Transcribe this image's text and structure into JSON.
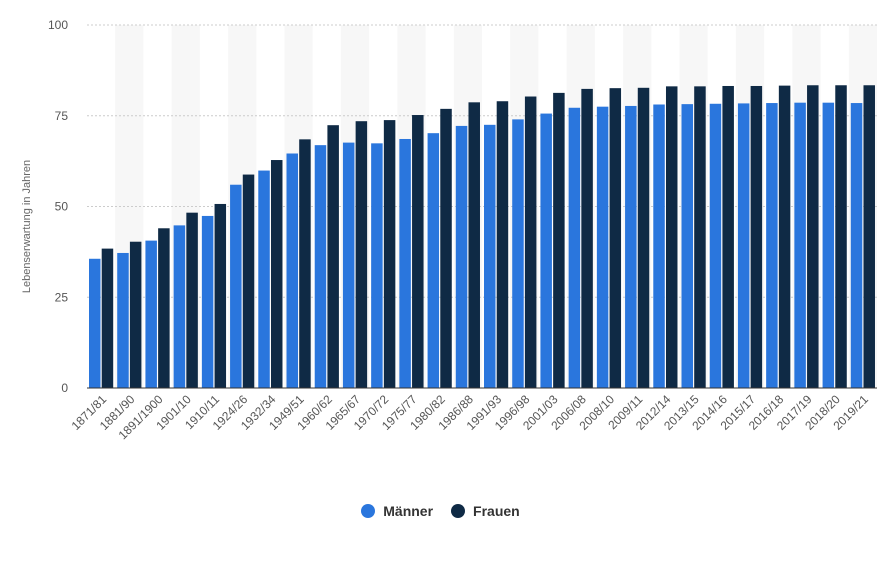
{
  "chart_data": {
    "type": "bar",
    "ylabel": "Lebenserwartung in Jahren",
    "ylim": [
      0,
      100
    ],
    "yticks": [
      0,
      25,
      50,
      75,
      100
    ],
    "grid": true,
    "legend_position": "bottom",
    "categories": [
      "1871/81",
      "1881/90",
      "1891/1900",
      "1901/10",
      "1910/11",
      "1924/26",
      "1932/34",
      "1949/51",
      "1960/62",
      "1965/67",
      "1970/72",
      "1975/77",
      "1980/82",
      "1986/88",
      "1991/93",
      "1996/98",
      "2001/03",
      "2006/08",
      "2008/10",
      "2009/11",
      "2012/14",
      "2013/15",
      "2014/16",
      "2015/17",
      "2016/18",
      "2017/19",
      "2018/20",
      "2019/21"
    ],
    "series": [
      {
        "name": "Männer",
        "color": "#2a76dd",
        "values": [
          35.6,
          37.2,
          40.6,
          44.8,
          47.4,
          56.0,
          59.9,
          64.6,
          66.9,
          67.6,
          67.4,
          68.6,
          70.2,
          72.2,
          72.5,
          74.0,
          75.6,
          77.2,
          77.5,
          77.7,
          78.1,
          78.2,
          78.3,
          78.4,
          78.5,
          78.6,
          78.6,
          78.5
        ]
      },
      {
        "name": "Frauen",
        "color": "#0f2a45",
        "values": [
          38.4,
          40.3,
          44.0,
          48.3,
          50.7,
          58.8,
          62.8,
          68.5,
          72.4,
          73.5,
          73.8,
          75.2,
          76.9,
          78.7,
          79.0,
          80.3,
          81.3,
          82.4,
          82.6,
          82.7,
          83.1,
          83.1,
          83.2,
          83.2,
          83.3,
          83.4,
          83.4,
          83.4
        ]
      }
    ]
  }
}
